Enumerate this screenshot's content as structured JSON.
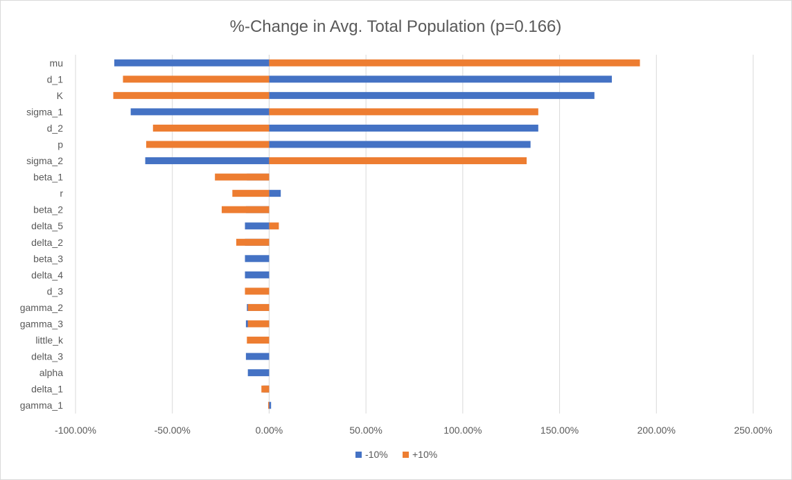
{
  "chart_data": {
    "type": "bar",
    "orientation": "horizontal",
    "title": "%-Change in Avg. Total Population (p=0.166)",
    "xlabel": "",
    "ylabel": "",
    "xlim": [
      -100,
      250
    ],
    "x_ticks": [
      -100,
      -50,
      0,
      50,
      100,
      150,
      200,
      250
    ],
    "x_tick_labels": [
      "-100.00%",
      "-50.00%",
      "0.00%",
      "50.00%",
      "100.00%",
      "150.00%",
      "200.00%",
      "250.00%"
    ],
    "grid": true,
    "legend_position": "bottom",
    "categories": [
      "mu",
      "d_1",
      "K",
      "sigma_1",
      "d_2",
      "p",
      "sigma_2",
      "beta_1",
      "r",
      "beta_2",
      "delta_5",
      "delta_2",
      "beta_3",
      "delta_4",
      "d_3",
      "gamma_2",
      "gamma_3",
      "little_k",
      "delta_3",
      "alpha",
      "delta_1",
      "gamma_1"
    ],
    "series": [
      {
        "name": "-10%",
        "color": "#4472c4",
        "values": [
          -80,
          177,
          168,
          -71.5,
          139,
          135,
          -64,
          -11.5,
          6,
          -12,
          -12.5,
          -12.5,
          -12.5,
          -12.5,
          0,
          -11.5,
          -12,
          0,
          -12,
          -11,
          -3,
          1
        ]
      },
      {
        "name": "+10%",
        "color": "#ed7d31",
        "values": [
          191.5,
          -75.5,
          -80.5,
          139,
          -60,
          -63.5,
          133,
          -28,
          -19,
          -24.5,
          5,
          -17,
          0,
          0,
          -12.5,
          -11,
          -11,
          -11.5,
          0,
          0,
          -4,
          -0.5
        ]
      }
    ]
  }
}
